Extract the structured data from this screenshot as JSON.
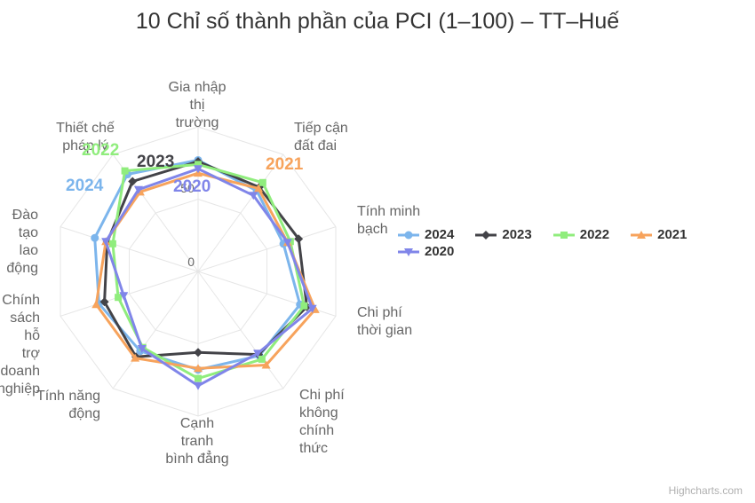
{
  "page": {
    "title": "10 Chỉ số thành phần của PCI (1–100) – TT–Huế",
    "credits": "Highcharts.com"
  },
  "chart_data": {
    "type": "radar",
    "title": "10 Chỉ số thành phần của PCI (1–100) – TT–Huế",
    "categories": [
      "Gia nhập thị trường",
      "Tiếp cận đất đai",
      "Tính minh bạch",
      "Chi phí thời gian",
      "Chi phí không chính thức",
      "Cạnh tranh bình đẳng",
      "Tính năng động",
      "Chính sách hỗ trợ doanh nghiệp",
      "Đào tạo lao động",
      "Thiết chế pháp lý"
    ],
    "yaxis": {
      "min": 0,
      "max": 100,
      "tick_interval": 50,
      "visible_tick_labels": [
        "0",
        "50"
      ],
      "grid": true
    },
    "legend_position": "right",
    "series": [
      {
        "name": "2024",
        "color": "#7cb5ec",
        "marker": "circle",
        "values": [
          77,
          69,
          62,
          74,
          72,
          68,
          68,
          72,
          75,
          83
        ]
      },
      {
        "name": "2023",
        "color": "#434348",
        "marker": "diamond",
        "values": [
          76,
          72,
          73,
          79,
          71,
          56,
          73,
          68,
          66,
          77
        ]
      },
      {
        "name": "2022",
        "color": "#90ed7d",
        "marker": "square",
        "values": [
          74,
          76,
          67,
          77,
          75,
          74,
          65,
          58,
          62,
          86
        ]
      },
      {
        "name": "2021",
        "color": "#f7a35c",
        "marker": "triangle",
        "values": [
          68,
          71,
          65,
          85,
          80,
          67,
          74,
          74,
          67,
          68
        ]
      },
      {
        "name": "2020",
        "color": "#8085e9",
        "marker": "triangle-down",
        "values": [
          71,
          65,
          65,
          83,
          70,
          79,
          66,
          54,
          67,
          70
        ]
      }
    ]
  }
}
